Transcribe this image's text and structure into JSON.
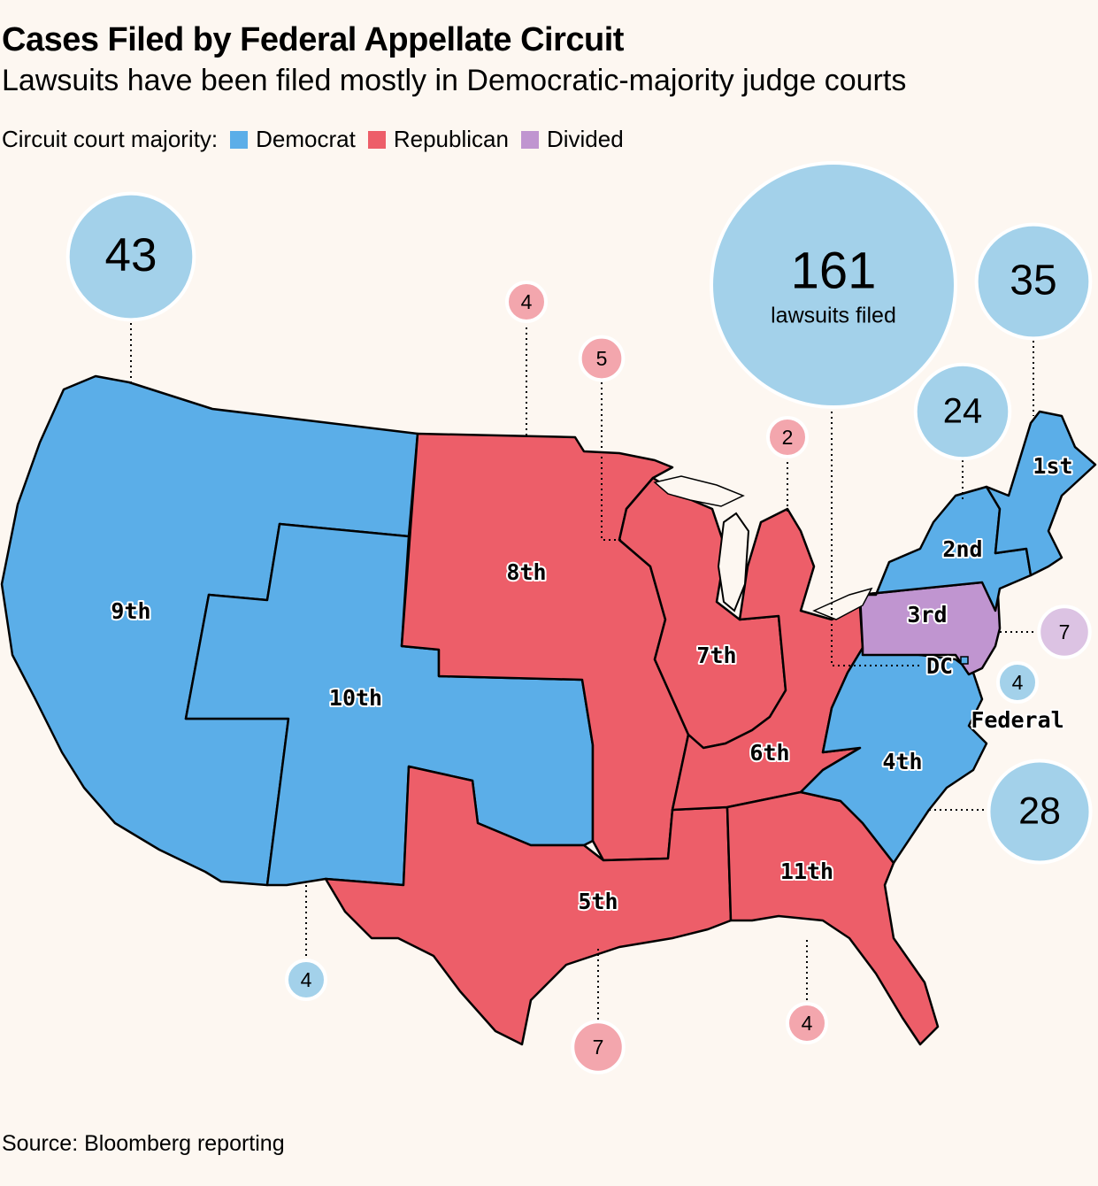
{
  "header": {
    "title": "Cases Filed by Federal Appellate Circuit",
    "subtitle": "Lawsuits have been filed mostly in Democratic-majority judge courts"
  },
  "legend": {
    "label": "Circuit court majority:",
    "items": [
      {
        "label": "Democrat",
        "color": "#5baee8"
      },
      {
        "label": "Republican",
        "color": "#ed5e69"
      },
      {
        "label": "Divided",
        "color": "#c095d0"
      }
    ]
  },
  "colors": {
    "democrat_fill": "#5baee8",
    "republican_fill": "#ed5e69",
    "divided_fill": "#c095d0",
    "democrat_bubble": "#a3d1ea",
    "republican_bubble": "#f3a6ad",
    "divided_bubble": "#dcc3e3",
    "background": "#fdf7f1"
  },
  "circuits": [
    {
      "label": "1st",
      "majority": "Democrat",
      "lawsuits": 35
    },
    {
      "label": "2nd",
      "majority": "Democrat",
      "lawsuits": 24
    },
    {
      "label": "3rd",
      "majority": "Divided",
      "lawsuits": 7
    },
    {
      "label": "4th",
      "majority": "Democrat",
      "lawsuits": 28
    },
    {
      "label": "5th",
      "majority": "Republican",
      "lawsuits": 7
    },
    {
      "label": "6th",
      "majority": "Republican",
      "lawsuits": 2
    },
    {
      "label": "7th",
      "majority": "Republican",
      "lawsuits": 5
    },
    {
      "label": "8th",
      "majority": "Republican",
      "lawsuits": 4
    },
    {
      "label": "9th",
      "majority": "Democrat",
      "lawsuits": 43
    },
    {
      "label": "10th",
      "majority": "Democrat",
      "lawsuits": 4
    },
    {
      "label": "11th",
      "majority": "Republican",
      "lawsuits": 4
    },
    {
      "label": "DC",
      "majority": "Democrat",
      "lawsuits": 161
    },
    {
      "label": "Federal",
      "majority": "Democrat",
      "lawsuits": 4
    }
  ],
  "bubble_caption": "lawsuits filed",
  "source": "Source: Bloomberg reporting"
}
